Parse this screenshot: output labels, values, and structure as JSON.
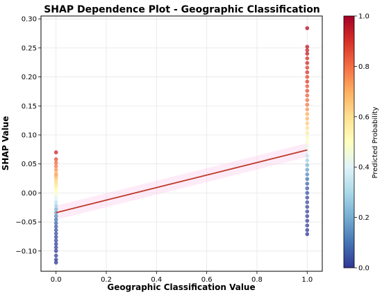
{
  "chart_data": {
    "type": "scatter",
    "title": "SHAP Dependence Plot - Geographic Classification",
    "xlabel": "Geographic Classification Value",
    "ylabel": "SHAP Value",
    "xlim": [
      -0.06,
      1.06
    ],
    "ylim": [
      -0.135,
      0.305
    ],
    "xticks": [
      0.0,
      0.2,
      0.4,
      0.6,
      0.8,
      1.0
    ],
    "xtick_labels": [
      "0.0",
      "0.2",
      "0.4",
      "0.6",
      "0.8",
      "1.0"
    ],
    "yticks": [
      -0.1,
      -0.05,
      0.0,
      0.05,
      0.1,
      0.15,
      0.2,
      0.25,
      0.3
    ],
    "ytick_labels": [
      "−0.10",
      "−0.05",
      "0.00",
      "0.05",
      "0.10",
      "0.15",
      "0.20",
      "0.25",
      "0.30"
    ],
    "grid": true,
    "colorbar": {
      "label": "Predicted Probability",
      "range": [
        0.0,
        1.0
      ],
      "ticks": [
        0.0,
        0.2,
        0.4,
        0.6,
        0.8,
        1.0
      ],
      "tick_labels": [
        "0.0",
        "0.2",
        "0.4",
        "0.6",
        "0.8",
        "1.0"
      ],
      "colormap": "RdYlBu_r"
    },
    "trend_line": {
      "color": "#c0392b",
      "x": [
        0.0,
        1.0
      ],
      "y": [
        -0.034,
        0.074
      ]
    },
    "points": [
      {
        "x": 0,
        "y": 0.07,
        "c": 0.92
      },
      {
        "x": 0,
        "y": 0.058,
        "c": 0.85
      },
      {
        "x": 0,
        "y": 0.052,
        "c": 0.8
      },
      {
        "x": 0,
        "y": 0.046,
        "c": 0.78
      },
      {
        "x": 0,
        "y": 0.04,
        "c": 0.74
      },
      {
        "x": 0,
        "y": 0.034,
        "c": 0.7
      },
      {
        "x": 0,
        "y": 0.03,
        "c": 0.72
      },
      {
        "x": 0,
        "y": 0.026,
        "c": 0.66
      },
      {
        "x": 0,
        "y": 0.022,
        "c": 0.62
      },
      {
        "x": 0,
        "y": 0.018,
        "c": 0.6
      },
      {
        "x": 0,
        "y": 0.014,
        "c": 0.58
      },
      {
        "x": 0,
        "y": 0.01,
        "c": 0.55
      },
      {
        "x": 0,
        "y": 0.006,
        "c": 0.52
      },
      {
        "x": 0,
        "y": 0.002,
        "c": 0.5
      },
      {
        "x": 0,
        "y": -0.004,
        "c": 0.45
      },
      {
        "x": 0,
        "y": -0.01,
        "c": 0.4
      },
      {
        "x": 0,
        "y": -0.016,
        "c": 0.34
      },
      {
        "x": 0,
        "y": -0.022,
        "c": 0.28
      },
      {
        "x": 0,
        "y": -0.028,
        "c": 0.22
      },
      {
        "x": 0,
        "y": -0.034,
        "c": 0.18
      },
      {
        "x": 0,
        "y": -0.04,
        "c": 0.14
      },
      {
        "x": 0,
        "y": -0.046,
        "c": 0.1
      },
      {
        "x": 0,
        "y": -0.052,
        "c": 0.08
      },
      {
        "x": 0,
        "y": -0.058,
        "c": 0.06
      },
      {
        "x": 0,
        "y": -0.064,
        "c": 0.05
      },
      {
        "x": 0,
        "y": -0.07,
        "c": 0.04
      },
      {
        "x": 0,
        "y": -0.076,
        "c": 0.03
      },
      {
        "x": 0,
        "y": -0.082,
        "c": 0.03
      },
      {
        "x": 0,
        "y": -0.088,
        "c": 0.02
      },
      {
        "x": 0,
        "y": -0.094,
        "c": 0.02
      },
      {
        "x": 0,
        "y": -0.1,
        "c": 0.01
      },
      {
        "x": 0,
        "y": -0.108,
        "c": 0.02
      },
      {
        "x": 0,
        "y": -0.115,
        "c": 0.01
      },
      {
        "x": 0,
        "y": -0.12,
        "c": 0.01
      },
      {
        "x": 1,
        "y": 0.284,
        "c": 0.97
      },
      {
        "x": 1,
        "y": 0.252,
        "c": 0.95
      },
      {
        "x": 1,
        "y": 0.246,
        "c": 0.93
      },
      {
        "x": 1,
        "y": 0.24,
        "c": 0.94
      },
      {
        "x": 1,
        "y": 0.232,
        "c": 0.9
      },
      {
        "x": 1,
        "y": 0.224,
        "c": 0.92
      },
      {
        "x": 1,
        "y": 0.216,
        "c": 0.88
      },
      {
        "x": 1,
        "y": 0.208,
        "c": 0.9
      },
      {
        "x": 1,
        "y": 0.2,
        "c": 0.86
      },
      {
        "x": 1,
        "y": 0.192,
        "c": 0.88
      },
      {
        "x": 1,
        "y": 0.184,
        "c": 0.84
      },
      {
        "x": 1,
        "y": 0.176,
        "c": 0.85
      },
      {
        "x": 1,
        "y": 0.168,
        "c": 0.82
      },
      {
        "x": 1,
        "y": 0.16,
        "c": 0.8
      },
      {
        "x": 1,
        "y": 0.152,
        "c": 0.78
      },
      {
        "x": 1,
        "y": 0.144,
        "c": 0.74
      },
      {
        "x": 1,
        "y": 0.136,
        "c": 0.7
      },
      {
        "x": 1,
        "y": 0.128,
        "c": 0.68
      },
      {
        "x": 1,
        "y": 0.12,
        "c": 0.64
      },
      {
        "x": 1,
        "y": 0.112,
        "c": 0.6
      },
      {
        "x": 1,
        "y": 0.104,
        "c": 0.56
      },
      {
        "x": 1,
        "y": 0.096,
        "c": 0.52
      },
      {
        "x": 1,
        "y": 0.088,
        "c": 0.48
      },
      {
        "x": 1,
        "y": 0.08,
        "c": 0.44
      },
      {
        "x": 1,
        "y": 0.072,
        "c": 0.4
      },
      {
        "x": 1,
        "y": 0.064,
        "c": 0.34
      },
      {
        "x": 1,
        "y": 0.056,
        "c": 0.28
      },
      {
        "x": 1,
        "y": 0.048,
        "c": 0.22
      },
      {
        "x": 1,
        "y": 0.04,
        "c": 0.18
      },
      {
        "x": 1,
        "y": 0.032,
        "c": 0.14
      },
      {
        "x": 1,
        "y": 0.024,
        "c": 0.1
      },
      {
        "x": 1,
        "y": 0.016,
        "c": 0.08
      },
      {
        "x": 1,
        "y": 0.008,
        "c": 0.06
      },
      {
        "x": 1,
        "y": 0.0,
        "c": 0.05
      },
      {
        "x": 1,
        "y": -0.008,
        "c": 0.04
      },
      {
        "x": 1,
        "y": -0.016,
        "c": 0.04
      },
      {
        "x": 1,
        "y": -0.024,
        "c": 0.03
      },
      {
        "x": 1,
        "y": -0.032,
        "c": 0.03
      },
      {
        "x": 1,
        "y": -0.04,
        "c": 0.02
      },
      {
        "x": 1,
        "y": -0.048,
        "c": 0.02
      },
      {
        "x": 1,
        "y": -0.056,
        "c": 0.02
      },
      {
        "x": 1,
        "y": -0.064,
        "c": 0.01
      },
      {
        "x": 1,
        "y": -0.071,
        "c": 0.01
      }
    ]
  }
}
